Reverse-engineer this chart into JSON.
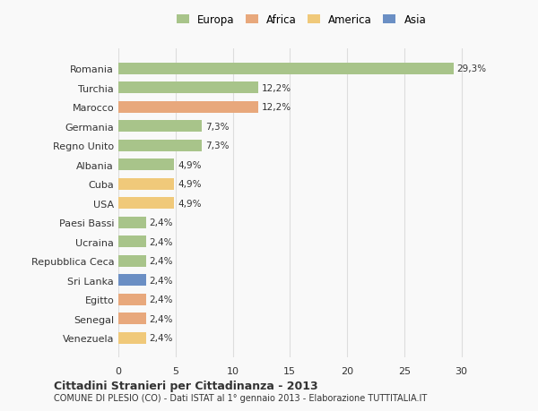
{
  "categories": [
    "Venezuela",
    "Senegal",
    "Egitto",
    "Sri Lanka",
    "Repubblica Ceca",
    "Ucraina",
    "Paesi Bassi",
    "USA",
    "Cuba",
    "Albania",
    "Regno Unito",
    "Germania",
    "Marocco",
    "Turchia",
    "Romania"
  ],
  "values": [
    2.4,
    2.4,
    2.4,
    2.4,
    2.4,
    2.4,
    2.4,
    4.9,
    4.9,
    4.9,
    7.3,
    7.3,
    12.2,
    12.2,
    29.3
  ],
  "labels": [
    "2,4%",
    "2,4%",
    "2,4%",
    "2,4%",
    "2,4%",
    "2,4%",
    "2,4%",
    "4,9%",
    "4,9%",
    "4,9%",
    "7,3%",
    "7,3%",
    "12,2%",
    "12,2%",
    "29,3%"
  ],
  "colors": [
    "#f0c97a",
    "#e8a87c",
    "#e8a87c",
    "#6b8fc4",
    "#a8c48a",
    "#a8c48a",
    "#a8c48a",
    "#f0c97a",
    "#f0c97a",
    "#a8c48a",
    "#a8c48a",
    "#a8c48a",
    "#e8a87c",
    "#a8c48a",
    "#a8c48a"
  ],
  "legend_labels": [
    "Europa",
    "Africa",
    "America",
    "Asia"
  ],
  "legend_colors": [
    "#a8c48a",
    "#e8a87c",
    "#f0c97a",
    "#6b8fc4"
  ],
  "title": "Cittadini Stranieri per Cittadinanza - 2013",
  "subtitle": "COMUNE DI PLESIO (CO) - Dati ISTAT al 1° gennaio 2013 - Elaborazione TUTTITALIA.IT",
  "xlim": [
    0,
    32
  ],
  "xticks": [
    0,
    5,
    10,
    15,
    20,
    25,
    30
  ],
  "background_color": "#f9f9f9",
  "bar_height": 0.6,
  "grid_color": "#dddddd",
  "text_color": "#333333"
}
